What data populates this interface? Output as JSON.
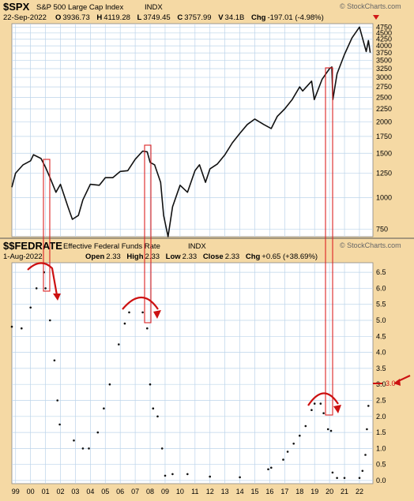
{
  "colors": {
    "frame_bg": "#f5d9a4",
    "plot_bg": "#ffffff",
    "grid": "#bcd4ea",
    "spx_line": "#111111",
    "fed_dots": "#111111",
    "annot": "#cc1111",
    "box": "#dd2222",
    "down_triangle": "#d01818",
    "watermark": "#666666"
  },
  "top_panel": {
    "symbol": "$SPX",
    "name": "S&P 500 Large Cap Index",
    "exchange": "INDX",
    "watermark": "© StockCharts.com",
    "date": "22-Sep-2022",
    "quote": {
      "o_label": "O",
      "o": "3936.73",
      "h_label": "H",
      "h": "4119.28",
      "l_label": "L",
      "l": "3749.45",
      "c_label": "C",
      "c": "3757.99",
      "v_label": "V",
      "v": "34.1B",
      "chg_label": "Chg",
      "chg": "-197.01 (-4.98%)"
    },
    "y_ticks": [
      "4750",
      "4500",
      "4250",
      "4000",
      "3750",
      "3500",
      "3250",
      "3000",
      "2750",
      "2500",
      "2250",
      "2000",
      "1750",
      "1500",
      "1250",
      "1000",
      "750"
    ],
    "scale": "log"
  },
  "bottom_panel": {
    "symbol": "$$FEDRATE",
    "name": "Effective Federal Funds Rate",
    "exchange": "INDX",
    "watermark": "© StockCharts.com",
    "date": "1-Aug-2022",
    "quote": {
      "open_label": "Open",
      "open": "2.33",
      "high_label": "High",
      "high": "2.33",
      "low_label": "Low",
      "low": "2.33",
      "close_label": "Close",
      "close": "2.33",
      "chg_label": "Chg",
      "chg": "+0.65 (+38.69%)"
    },
    "y_ticks": [
      "6.5",
      "6.0",
      "5.5",
      "5.0",
      "4.5",
      "4.0",
      "3.5",
      "3.0",
      "2.5",
      "2.0",
      "1.5",
      "1.0",
      "0.5",
      "0.0"
    ],
    "last_value_marker": "3.0"
  },
  "x_axis": {
    "tick_labels": [
      "99",
      "00",
      "01",
      "02",
      "03",
      "04",
      "05",
      "06",
      "07",
      "08",
      "09",
      "10",
      "11",
      "12",
      "13",
      "14",
      "15",
      "16",
      "17",
      "18",
      "19",
      "20",
      "21",
      "22"
    ]
  },
  "chart_data": [
    {
      "type": "line",
      "title": "$SPX S&P 500 Large Cap Index INDX",
      "series": [
        {
          "name": "$SPX",
          "x": [
            1998.75,
            1999.0,
            1999.5,
            2000.0,
            2000.2,
            2000.7,
            2001.0,
            2001.3,
            2001.7,
            2002.0,
            2002.5,
            2002.8,
            2003.2,
            2003.5,
            2004.0,
            2004.6,
            2005.0,
            2005.5,
            2006.0,
            2006.5,
            2007.0,
            2007.5,
            2007.8,
            2008.0,
            2008.3,
            2008.7,
            2008.9,
            2009.2,
            2009.5,
            2010.0,
            2010.5,
            2011.0,
            2011.3,
            2011.7,
            2012.0,
            2012.5,
            2013.0,
            2013.5,
            2014.0,
            2014.5,
            2015.0,
            2015.6,
            2016.1,
            2016.5,
            2017.0,
            2017.5,
            2018.0,
            2018.2,
            2018.8,
            2018.98,
            2019.5,
            2020.0,
            2020.15,
            2020.22,
            2020.5,
            2021.0,
            2021.5,
            2022.0,
            2022.45,
            2022.6,
            2022.72
          ],
          "y": [
            1100,
            1250,
            1350,
            1400,
            1480,
            1430,
            1320,
            1200,
            1050,
            1130,
            920,
            820,
            850,
            980,
            1130,
            1120,
            1200,
            1200,
            1270,
            1280,
            1420,
            1530,
            1520,
            1380,
            1350,
            1150,
            850,
            700,
            920,
            1120,
            1050,
            1280,
            1350,
            1150,
            1300,
            1360,
            1480,
            1650,
            1800,
            1950,
            2050,
            1950,
            1880,
            2100,
            2250,
            2450,
            2750,
            2650,
            2900,
            2450,
            2950,
            3250,
            3300,
            2450,
            3100,
            3700,
            4300,
            4750,
            3800,
            4200,
            3760
          ]
        }
      ],
      "y_scale": "log",
      "ylim": [
        700,
        4900
      ],
      "xlim": [
        1998.75,
        2022.9
      ]
    },
    {
      "type": "scatter",
      "title": "$$FEDRATE Effective Federal Funds Rate INDX",
      "series": [
        {
          "name": "$$FEDRATE",
          "x": [
            1998.75,
            1999.4,
            2000.0,
            2000.4,
            2000.9,
            2001.0,
            2001.3,
            2001.6,
            2001.8,
            2001.95,
            2002.9,
            2003.5,
            2003.9,
            2004.5,
            2004.9,
            2005.3,
            2005.9,
            2006.3,
            2006.6,
            2007.5,
            2007.8,
            2008.0,
            2008.2,
            2008.5,
            2008.8,
            2009.0,
            2009.5,
            2010.5,
            2012.0,
            2014.0,
            2015.9,
            2016.1,
            2016.9,
            2017.2,
            2017.6,
            2018.0,
            2018.4,
            2018.8,
            2019.0,
            2019.4,
            2019.6,
            2019.9,
            2020.1,
            2020.2,
            2020.5,
            2021.0,
            2022.0,
            2022.2,
            2022.4,
            2022.5,
            2022.6
          ],
          "y": [
            4.8,
            4.75,
            5.4,
            6.0,
            6.5,
            6.0,
            5.0,
            3.75,
            2.5,
            1.75,
            1.25,
            1.0,
            1.0,
            1.5,
            2.25,
            3.0,
            4.25,
            4.9,
            5.25,
            5.25,
            4.75,
            3.0,
            2.25,
            2.0,
            1.0,
            0.15,
            0.2,
            0.2,
            0.12,
            0.1,
            0.35,
            0.4,
            0.65,
            0.9,
            1.15,
            1.4,
            1.7,
            2.2,
            2.4,
            2.4,
            2.1,
            1.6,
            1.55,
            0.25,
            0.08,
            0.08,
            0.08,
            0.3,
            0.8,
            1.6,
            2.33
          ]
        }
      ],
      "ylim": [
        0.0,
        6.7
      ],
      "xlim": [
        1998.75,
        2022.9
      ]
    }
  ]
}
